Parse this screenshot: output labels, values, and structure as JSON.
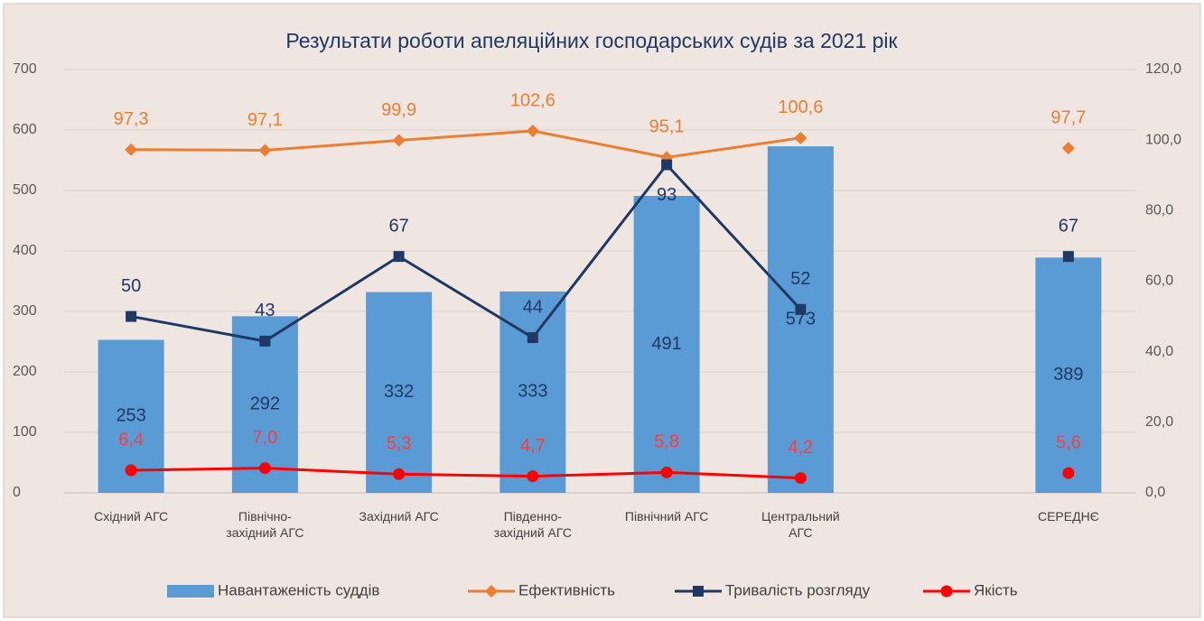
{
  "chart_data": {
    "type": "bar-line",
    "title": "Результати роботи апеляційних господарських судів за 2021 рік",
    "categories": [
      "Східний АГС",
      "Північно-західний АГС",
      "Західний АГС",
      "Південно-західний АГС",
      "Північний АГС",
      "Центральний АГС",
      null,
      "СЕРЕДНЄ"
    ],
    "ylim": [
      0,
      700
    ],
    "yticks": [
      0,
      100,
      200,
      300,
      400,
      500,
      600,
      700
    ],
    "y2lim": [
      0,
      120
    ],
    "y2ticks": [
      {
        "value": 0,
        "label": "0,0"
      },
      {
        "value": 20,
        "label": "20,0"
      },
      {
        "value": 40,
        "label": "40,0"
      },
      {
        "value": 60,
        "label": "60,0"
      },
      {
        "value": 80,
        "label": "80,0"
      },
      {
        "value": 100,
        "label": "100,0"
      },
      {
        "value": 120,
        "label": "120,0"
      }
    ],
    "grid": true,
    "legend": "bottom",
    "series": [
      {
        "name": "Навантаженість суддів",
        "type": "bar",
        "color": "#5b9bd5",
        "axis": "y",
        "values": [
          253,
          292,
          332,
          333,
          491,
          573,
          null,
          389
        ]
      },
      {
        "name": "Ефективність",
        "type": "line",
        "marker": "diamond",
        "color": "#ed7d31",
        "axis": "y2",
        "values": [
          97.3,
          97.1,
          99.9,
          102.6,
          95.1,
          100.6,
          null,
          97.7
        ],
        "value_labels": [
          "97,3",
          "97,1",
          "99,9",
          "102,6",
          "95,1",
          "100,6",
          null,
          "97,7"
        ]
      },
      {
        "name": "Тривалість розгляду",
        "type": "line",
        "marker": "square",
        "color": "#1f3864",
        "axis": "y2",
        "values": [
          50,
          43,
          67,
          44,
          93,
          52,
          null,
          67
        ]
      },
      {
        "name": "Якість",
        "type": "line",
        "marker": "circle",
        "color": "#ff0000",
        "axis": "y2",
        "values": [
          6.4,
          7.0,
          5.3,
          4.7,
          5.8,
          4.2,
          null,
          5.6
        ],
        "value_labels": [
          "6,4",
          "7,0",
          "5,3",
          "4,7",
          "5,8",
          "4,2",
          null,
          "5,6"
        ]
      }
    ]
  }
}
